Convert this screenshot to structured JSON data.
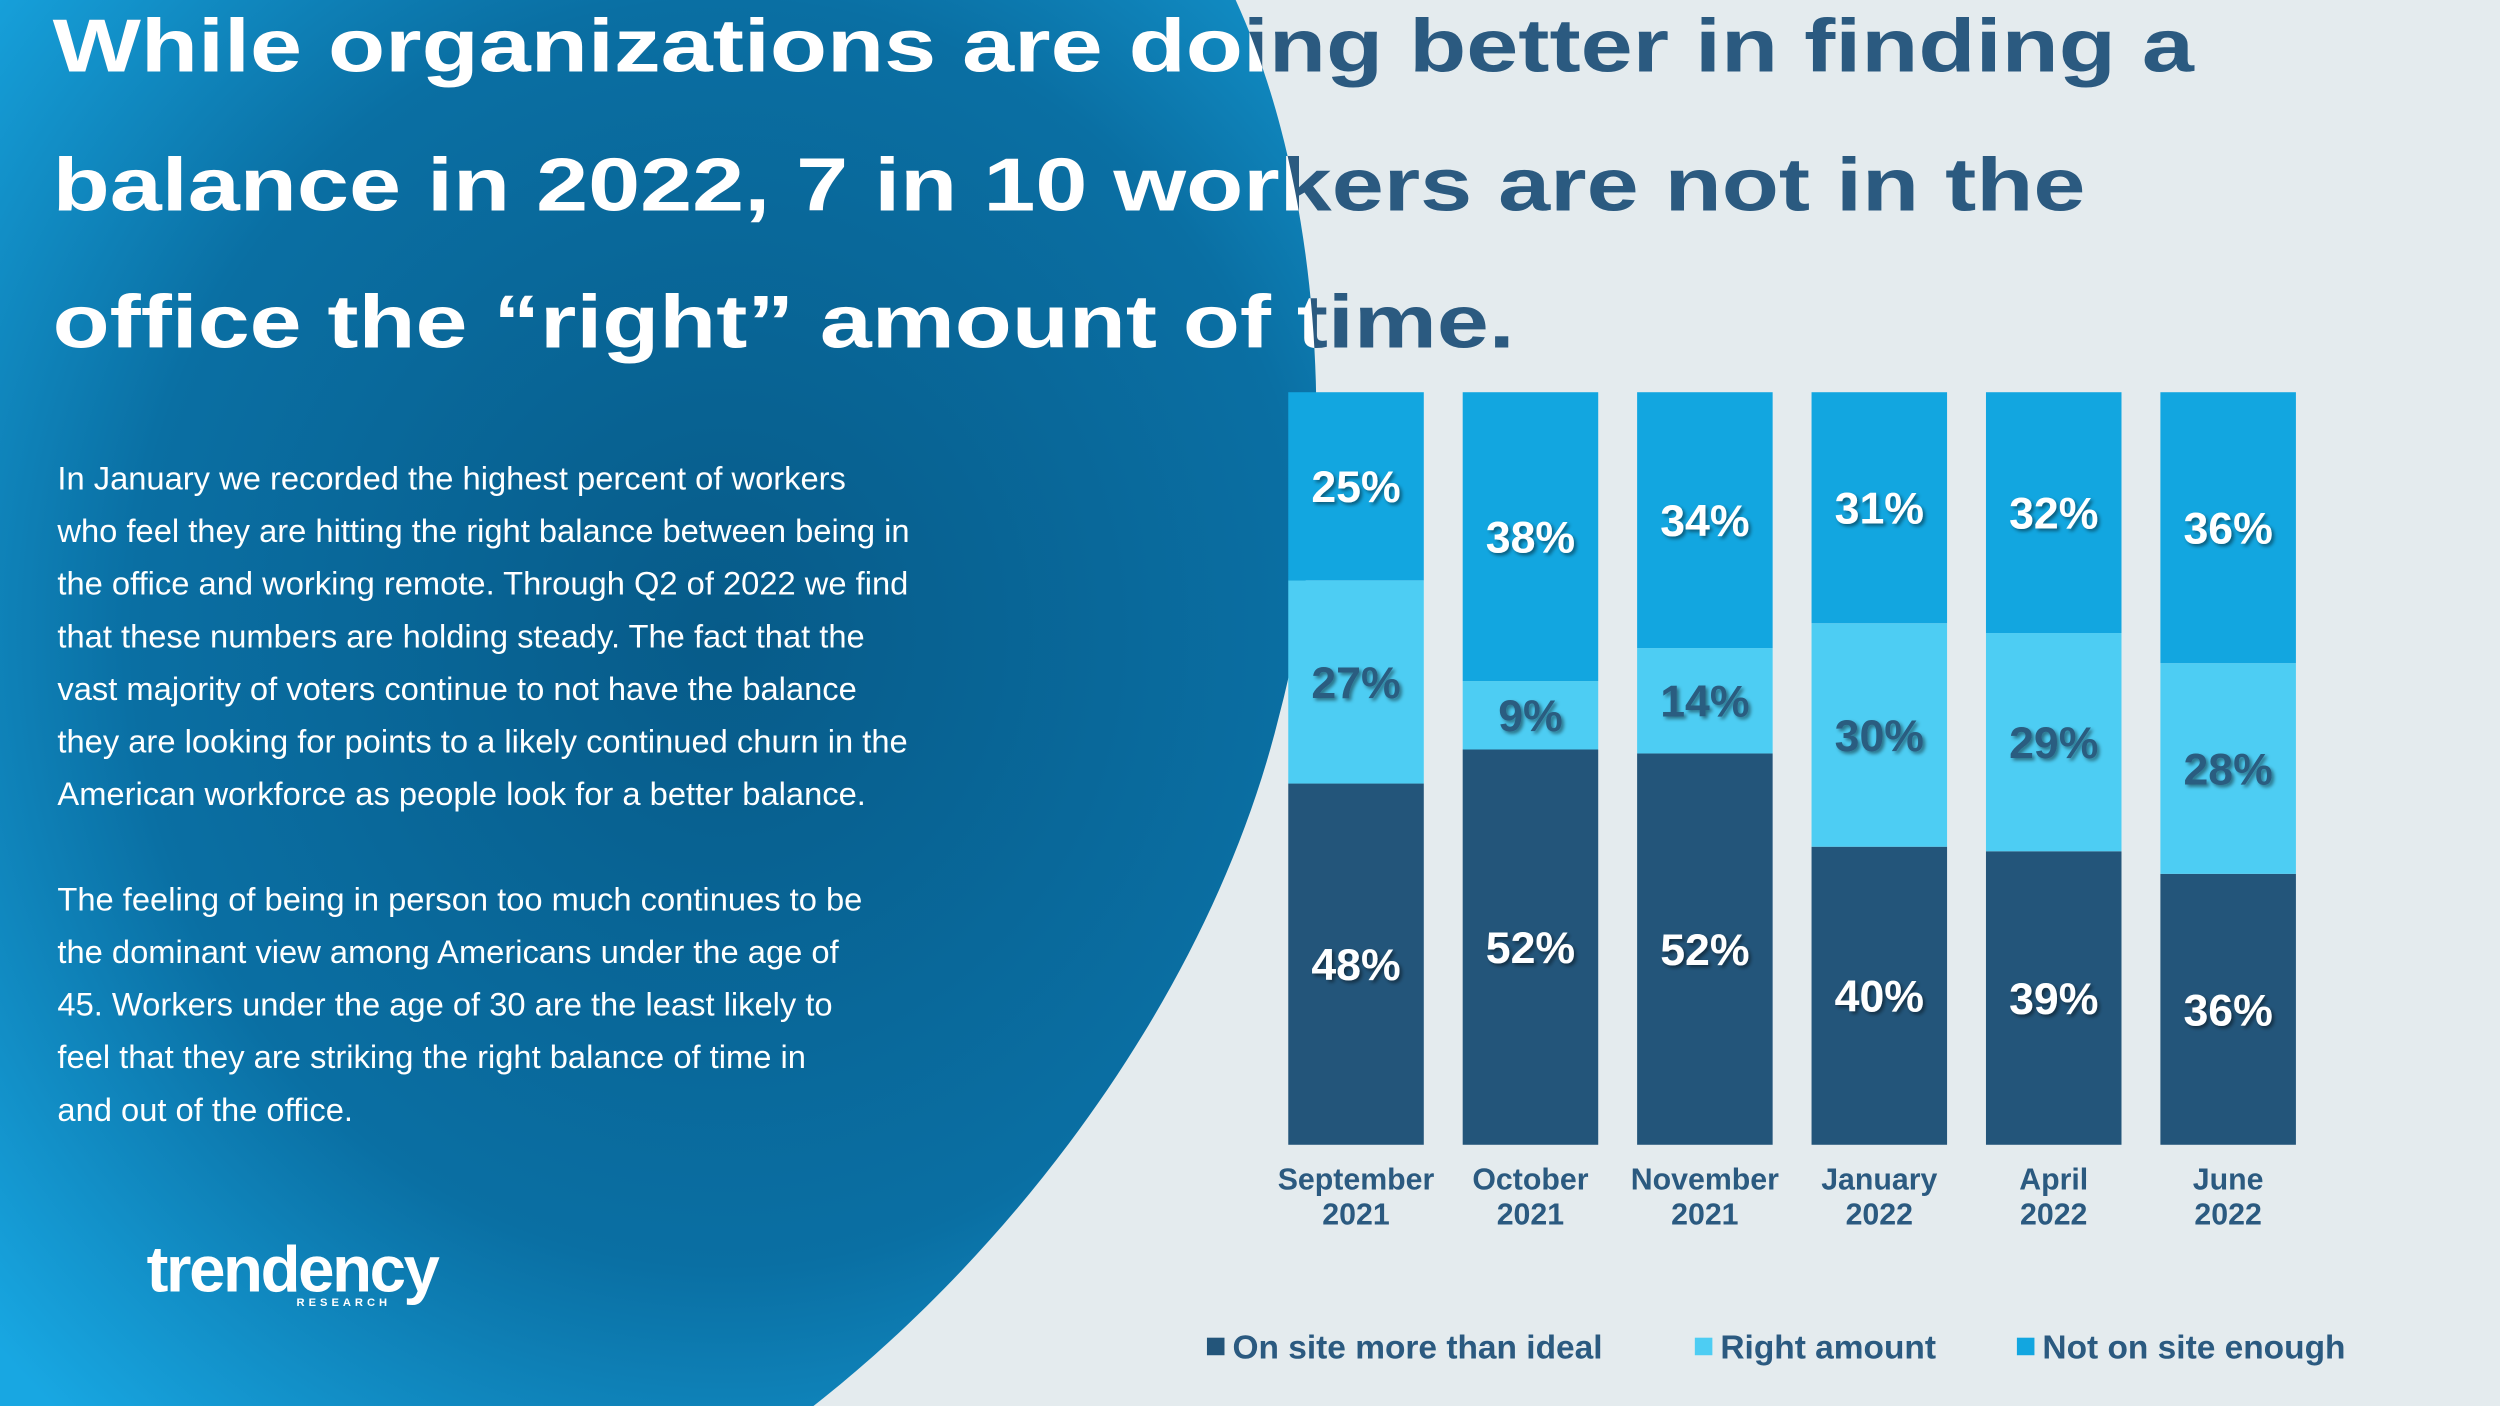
{
  "header": {
    "title": [
      "While organizations are doing better in finding a",
      "balance in 2022, 7 in 10 workers are not in the",
      "office the “right” amount of time."
    ]
  },
  "body": {
    "paragraphs": [
      [
        "In January we recorded the highest percent of workers",
        "who feel they are hitting the right balance between being in",
        "the office and working remote. Through Q2 of 2022 we find",
        "that these numbers are holding steady. The fact that the",
        "vast majority of voters continue to not have the balance",
        "they are looking for points to a likely continued churn in the",
        "American workforce as people look for a better balance."
      ],
      [
        "The feeling of being in person too much continues to be",
        "the dominant view among Americans under the age of",
        "45. Workers under the age of 30 are the least likely to",
        "feel that they are striking the right balance of time in",
        "and out of the office."
      ]
    ]
  },
  "logo": {
    "name": "trendency",
    "tagline": "RESEARCH"
  },
  "chart_data": {
    "type": "bar",
    "stacked": true,
    "categories": [
      "September 2021",
      "October 2021",
      "November 2021",
      "January 2022",
      "April 2022",
      "June 2022"
    ],
    "series": [
      {
        "name": "On site more than ideal",
        "color": "#23557a",
        "label_color": "#ffffff",
        "values": [
          48,
          52,
          52,
          40,
          39,
          36
        ],
        "value_labels": [
          "48%",
          "52%",
          "52%",
          "40%",
          "39%",
          "36%"
        ]
      },
      {
        "name": "Right amount",
        "color": "#4dcdf3",
        "label_color": "#2b5d80",
        "values": [
          27,
          9,
          14,
          30,
          29,
          28
        ],
        "value_labels": [
          "27%",
          "9%",
          "14%",
          "30%",
          "29%",
          "28%"
        ]
      },
      {
        "name": "Not on site enough",
        "color": "#12a6e0",
        "label_color": "#ffffff",
        "values": [
          25,
          38,
          34,
          31,
          32,
          36
        ],
        "value_labels": [
          "25%",
          "38%",
          "34%",
          "31%",
          "32%",
          "36%"
        ]
      }
    ],
    "legend": "bottom"
  }
}
